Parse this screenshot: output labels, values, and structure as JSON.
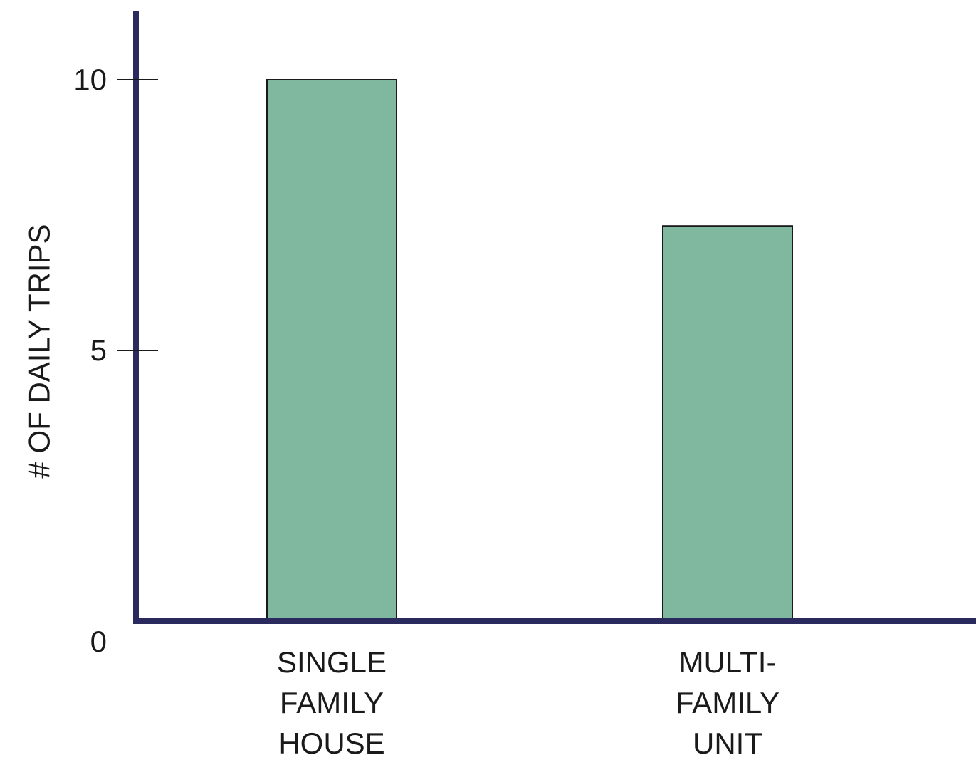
{
  "chart_data": {
    "type": "bar",
    "categories": [
      [
        "SINGLE",
        "FAMILY",
        "HOUSE"
      ],
      [
        "MULTI-",
        "FAMILY",
        "UNIT"
      ]
    ],
    "values": [
      10,
      7.3
    ],
    "ylabel": "# OF DAILY TRIPS",
    "xlabel": "",
    "yticks": [
      0,
      5,
      10
    ],
    "ylim": [
      0,
      11.3
    ],
    "grid": false,
    "legend": "none",
    "bar_color": "#80b89f",
    "axis_color": "#2a2a5e"
  }
}
